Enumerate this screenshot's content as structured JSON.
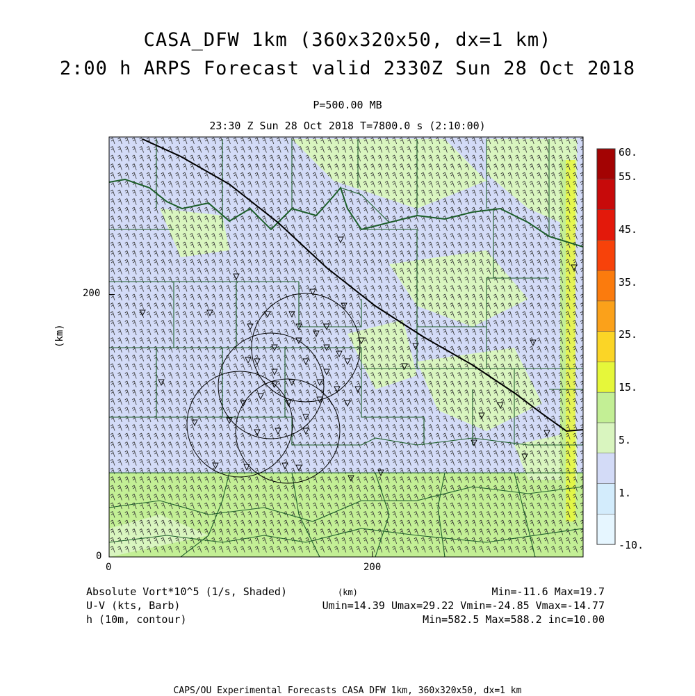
{
  "header": {
    "title_line1": "CASA_DFW 1km (360x320x50, dx=1 km)",
    "title_line2": "2:00 h ARPS Forecast valid 2330Z Sun 28 Oct 2018",
    "pressure_level": "P=500.00 MB",
    "time_line": "23:30 Z Sun 28 Oct 2018   T=7800.0 s (2:10:00)"
  },
  "axes": {
    "x_label": "(km)",
    "y_label": "(km)",
    "x_ticks": [
      {
        "value": 0,
        "label": "0"
      },
      {
        "value": 200,
        "label": "200"
      }
    ],
    "y_ticks": [
      {
        "value": 0,
        "label": "0"
      },
      {
        "value": 200,
        "label": "200"
      }
    ],
    "x_range": [
      0,
      360
    ],
    "y_range": [
      0,
      320
    ]
  },
  "colorbar": {
    "labels": [
      "60.",
      "55.",
      "45.",
      "35.",
      "25.",
      "15.",
      "5.",
      "1.",
      "-10."
    ],
    "colors": [
      "#e6f6ff",
      "#d3ecfc",
      "#d3dbf7",
      "#d9f5bf",
      "#c3ef95",
      "#e6f73a",
      "#fbd526",
      "#fba11a",
      "#fb7b0d",
      "#f7420a",
      "#e3190b",
      "#c70a0a",
      "#a30303"
    ]
  },
  "legend": {
    "line1_left": "Absolute Vort*10^5 (1/s, Shaded)",
    "line1_right": "Min=-11.6 Max=19.7",
    "line2_left": "U-V (kts, Barb)",
    "line2_right": "Umin=14.39 Umax=29.22 Vmin=-24.85 Vmax=-14.77",
    "line3_left": "h (10m, contour)",
    "line3_right": "Min=582.5 Max=588.2 inc=10.00",
    "center_unit": "(km)"
  },
  "footer": {
    "credit": "CAPS/OU Experimental Forecasts  CASA DFW 1km, 360x320x50, dx=1 km"
  },
  "style": {
    "field_base": "#d3dbf7",
    "field_green": "#d9f5bf",
    "field_yellowgreen": "#c3ef95",
    "county_line": "#1d5e2a",
    "barb_color": "#333333"
  }
}
